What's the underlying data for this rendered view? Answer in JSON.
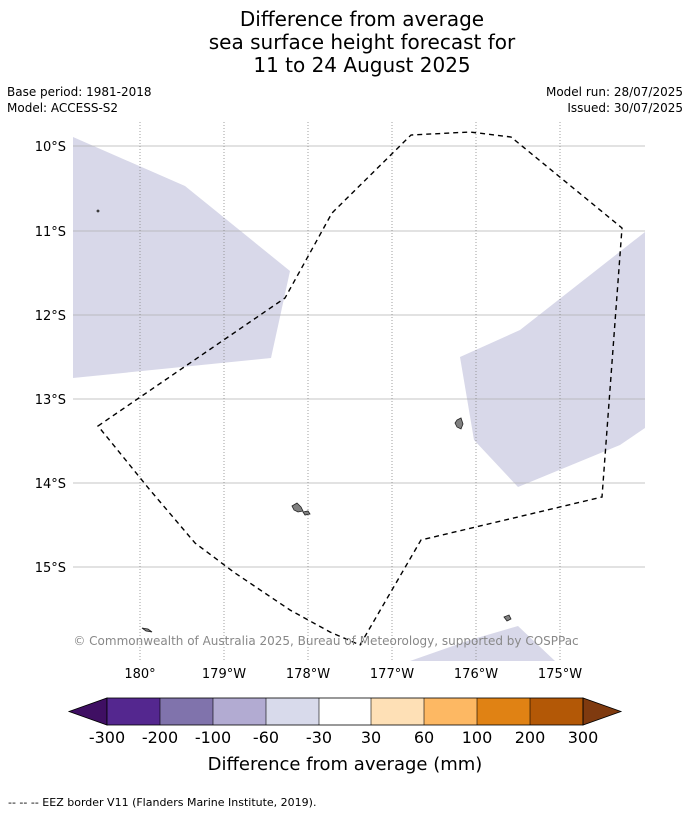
{
  "title": {
    "line1": "Difference from average",
    "line2": "sea surface height forecast for",
    "line3": "11 to 24 August 2025"
  },
  "meta": {
    "base_period": "Base period: 1981-2018",
    "model": "Model: ACCESS-S2",
    "model_run": "Model run: 28/07/2025",
    "issued": "Issued: 30/07/2025"
  },
  "map": {
    "lat_labels": [
      "10°S",
      "11°S",
      "12°S",
      "13°S",
      "14°S",
      "15°S"
    ],
    "lon_labels": [
      "180°",
      "179°W",
      "178°W",
      "177°W",
      "176°W",
      "175°W"
    ],
    "copyright": "© Commonwealth of Australia 2025, Bureau of Meteorology, supported by COSPPac",
    "anomaly_fill_color": "#d8d8e9",
    "eez_color": "#000000",
    "land_color": "#808080"
  },
  "colorbar": {
    "title": "Difference from average (mm)",
    "tick_labels": [
      "-300",
      "-200",
      "-100",
      "-60",
      "-30",
      "30",
      "60",
      "100",
      "200",
      "300"
    ],
    "under_color": "#3f0f63",
    "over_color": "#7f3a0f",
    "colors": [
      "#54278f",
      "#8073ac",
      "#b2abd2",
      "#d8daeb",
      "#ffffff",
      "#fee0b6",
      "#fdb863",
      "#e08214",
      "#b35806"
    ]
  },
  "footer": {
    "legend_text": "-- -- -- EEZ border V11 (Flanders Marine Institute, 2019)."
  }
}
